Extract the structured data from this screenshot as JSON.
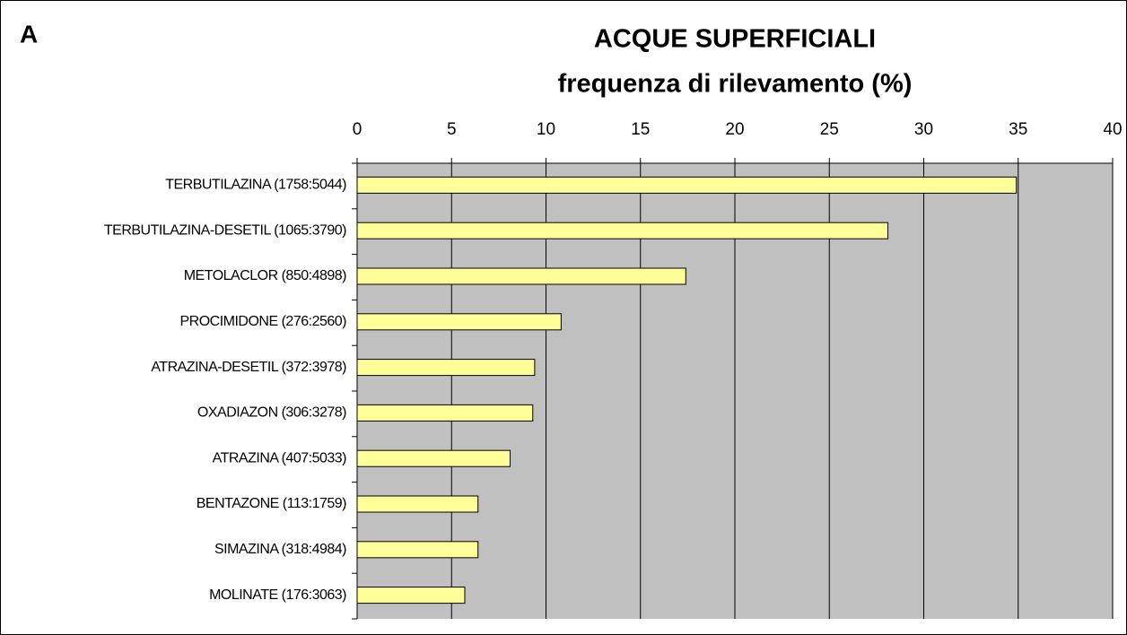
{
  "chart_data": {
    "type": "bar",
    "orientation": "horizontal",
    "panel_label": "A",
    "title": "ACQUE SUPERFICIALI",
    "subtitle": "frequenza di rilevamento (%)",
    "categories": [
      "TERBUTILAZINA (1758:5044)",
      "TERBUTILAZINA-DESETIL (1065:3790)",
      "METOLACLOR (850:4898)",
      "PROCIMIDONE (276:2560)",
      "ATRAZINA-DESETIL (372:3978)",
      "OXADIAZON (306:3278)",
      "ATRAZINA (407:5033)",
      "BENTAZONE (113:1759)",
      "SIMAZINA (318:4984)",
      "MOLINATE (176:3063)"
    ],
    "values": [
      34.9,
      28.1,
      17.4,
      10.8,
      9.4,
      9.3,
      8.1,
      6.4,
      6.4,
      5.7
    ],
    "color": "#ffff99",
    "plot_background": "#c0c0c0",
    "xlim": [
      0,
      40
    ],
    "xticks": [
      0,
      5,
      10,
      15,
      20,
      25,
      30,
      35,
      40
    ],
    "grid": true
  }
}
